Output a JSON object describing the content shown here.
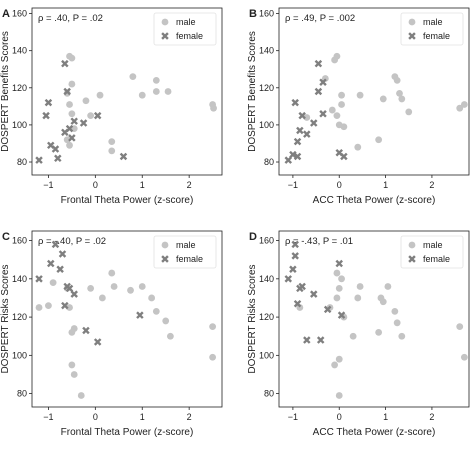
{
  "colors": {
    "male": "#c4c4c4",
    "female": "#7f7f7f",
    "axis": "#222222",
    "legend_border": "#e2e2e2"
  },
  "legend": {
    "male": "male",
    "female": "female"
  },
  "chart_data": [
    {
      "type": "scatter",
      "panel": "A",
      "stat": "ρ = .40, P = .02",
      "xlabel": "Frontal Theta Power (z-score)",
      "ylabel": "DOSPERT Benefits Scores",
      "xlim": [
        -1.35,
        2.7
      ],
      "ylim": [
        73,
        163
      ],
      "xticks": [
        -1,
        0,
        1,
        2
      ],
      "yticks": [
        80,
        100,
        120,
        140,
        160
      ],
      "xtick_labels": [
        "−1",
        "0",
        "1",
        "2"
      ],
      "ytick_labels": [
        "80",
        "100",
        "120",
        "140",
        "160"
      ],
      "legend_position": "top-right",
      "series": [
        {
          "name": "male",
          "marker": "circle",
          "x": [
            -0.5,
            -0.55,
            -0.6,
            -0.5,
            -0.55,
            -0.5,
            -0.45,
            -0.6,
            -0.55,
            -0.2,
            -0.1,
            0.1,
            0.35,
            0.35,
            0.8,
            1.0,
            1.3,
            1.3,
            1.55,
            2.5,
            2.52
          ],
          "y": [
            136,
            137,
            117,
            122,
            111,
            106,
            98,
            92,
            89,
            113,
            105,
            116,
            91,
            86,
            126,
            116,
            118,
            124,
            118,
            111,
            109
          ]
        },
        {
          "name": "female",
          "marker": "x",
          "x": [
            -1.2,
            -1.05,
            -1.0,
            -0.95,
            -0.85,
            -0.8,
            -0.65,
            -0.65,
            -0.6,
            -0.55,
            -0.5,
            -0.45,
            -0.25,
            0.05,
            0.6
          ],
          "y": [
            81,
            105,
            112,
            89,
            87,
            82,
            96,
            133,
            118,
            98,
            93,
            102,
            101,
            105,
            83
          ]
        }
      ]
    },
    {
      "type": "scatter",
      "panel": "B",
      "stat": "ρ = .49, P = .002",
      "xlabel": "ACC Theta Power (z-score)",
      "ylabel": "DOSPERT Benefits Scores",
      "xlim": [
        -1.3,
        2.8
      ],
      "ylim": [
        73,
        163
      ],
      "xticks": [
        -1,
        0,
        1,
        2
      ],
      "yticks": [
        80,
        100,
        120,
        140,
        160
      ],
      "xtick_labels": [
        "−1",
        "0",
        "1",
        "2"
      ],
      "ytick_labels": [
        "80",
        "100",
        "120",
        "140",
        "160"
      ],
      "legend_position": "top-right",
      "series": [
        {
          "name": "male",
          "marker": "circle",
          "x": [
            -0.1,
            -0.05,
            -0.3,
            0.05,
            0.05,
            -0.05,
            -0.15,
            0.45,
            0.4,
            1.2,
            1.25,
            1.3,
            0.85,
            1.35,
            0.95,
            1.5,
            2.6,
            2.7,
            0.0,
            0.1,
            -0.7
          ],
          "y": [
            135,
            137,
            125,
            111,
            116,
            105,
            108,
            116,
            88,
            126,
            124,
            117,
            92,
            114,
            114,
            107,
            109,
            111,
            100,
            99,
            104
          ]
        },
        {
          "name": "female",
          "marker": "x",
          "x": [
            -1.1,
            -1.0,
            -0.95,
            -0.9,
            -0.85,
            -0.8,
            -0.7,
            -0.55,
            -0.45,
            -0.45,
            -0.35,
            -0.35,
            0.0,
            0.1,
            -0.9
          ],
          "y": [
            81,
            84,
            112,
            83,
            97,
            105,
            95,
            101,
            133,
            118,
            123,
            106,
            85,
            83,
            91
          ]
        }
      ]
    },
    {
      "type": "scatter",
      "panel": "C",
      "stat": "ρ = -.40, P = .02",
      "xlabel": "Frontal Theta Power (z-score)",
      "ylabel": "DOSPERT Risks Scores",
      "xlim": [
        -1.35,
        2.7
      ],
      "ylim": [
        73,
        165
      ],
      "xticks": [
        -1,
        0,
        1,
        2
      ],
      "yticks": [
        80,
        100,
        120,
        140,
        160
      ],
      "xtick_labels": [
        "−1",
        "0",
        "1",
        "2"
      ],
      "ytick_labels": [
        "80",
        "100",
        "120",
        "140",
        "160"
      ],
      "legend_position": "top-right",
      "series": [
        {
          "name": "male",
          "marker": "circle",
          "x": [
            -1.2,
            -1.0,
            -0.9,
            -0.6,
            -0.55,
            -0.5,
            -0.45,
            -0.5,
            -0.45,
            -0.3,
            -0.1,
            0.15,
            0.35,
            0.4,
            0.75,
            1.0,
            1.2,
            1.3,
            1.5,
            1.6,
            2.5,
            2.5
          ],
          "y": [
            125,
            126,
            138,
            135,
            125,
            112,
            114,
            95,
            90,
            79,
            135,
            130,
            143,
            136,
            134,
            136,
            130,
            123,
            118,
            110,
            115,
            99
          ]
        },
        {
          "name": "female",
          "marker": "x",
          "x": [
            -1.2,
            -0.95,
            -0.85,
            -0.75,
            -0.7,
            -0.6,
            -0.55,
            -0.45,
            -0.65,
            -0.2,
            0.05,
            0.95
          ],
          "y": [
            140,
            148,
            158,
            145,
            153,
            136,
            135,
            132,
            126,
            113,
            107,
            121
          ]
        }
      ]
    },
    {
      "type": "scatter",
      "panel": "D",
      "stat": "ρ = -.43, P = .01",
      "xlabel": "ACC Theta Power (z-score)",
      "ylabel": "DOSPERT Risks Scores",
      "xlim": [
        -1.3,
        2.8
      ],
      "ylim": [
        73,
        165
      ],
      "xticks": [
        -1,
        0,
        1,
        2
      ],
      "yticks": [
        80,
        100,
        120,
        140,
        160
      ],
      "xtick_labels": [
        "−1",
        "0",
        "1",
        "2"
      ],
      "ytick_labels": [
        "80",
        "100",
        "120",
        "140",
        "160"
      ],
      "legend_position": "top-right",
      "series": [
        {
          "name": "male",
          "marker": "circle",
          "x": [
            -0.85,
            -0.2,
            -0.05,
            0.0,
            -0.05,
            0.05,
            0.1,
            0.4,
            0.45,
            0.85,
            0.9,
            1.05,
            1.2,
            1.25,
            1.35,
            2.6,
            2.7,
            0.0,
            -0.1,
            0.95,
            0.3,
            0.0
          ],
          "y": [
            125,
            125,
            143,
            135,
            130,
            140,
            120,
            130,
            136,
            112,
            130,
            136,
            123,
            117,
            110,
            115,
            99,
            98,
            95,
            128,
            110,
            79
          ]
        },
        {
          "name": "female",
          "marker": "x",
          "x": [
            -1.1,
            -1.0,
            -0.95,
            -0.95,
            -0.9,
            -0.85,
            -0.8,
            -0.55,
            -0.7,
            -0.4,
            -0.25,
            0.0,
            0.05
          ],
          "y": [
            140,
            145,
            158,
            152,
            127,
            135,
            136,
            132,
            108,
            108,
            124,
            148,
            121
          ]
        }
      ]
    }
  ]
}
